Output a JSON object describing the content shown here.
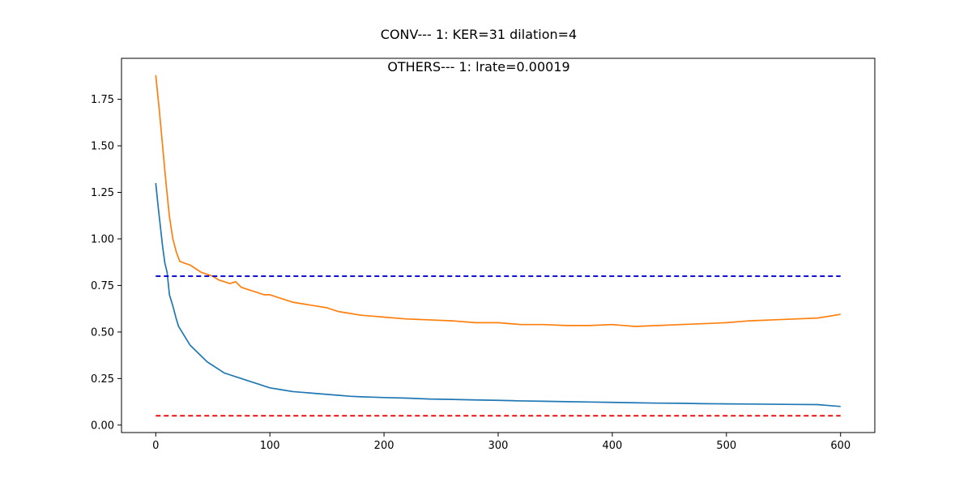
{
  "chart_data": {
    "type": "line",
    "suptitle": "CONV--- 1: KER=31   dilation=4",
    "title": "OTHERS--- 1: lrate=0.00019",
    "xlabel": "",
    "ylabel": "",
    "xlim": [
      -30,
      630
    ],
    "ylim": [
      -0.04,
      1.97
    ],
    "xticks": [
      0,
      100,
      200,
      300,
      400,
      500,
      600
    ],
    "yticks": [
      0.0,
      0.25,
      0.5,
      0.75,
      1.0,
      1.25,
      1.5,
      1.75
    ],
    "ytick_labels": [
      "0.00",
      "0.25",
      "0.50",
      "0.75",
      "1.00",
      "1.25",
      "1.50",
      "1.75"
    ],
    "grid": false,
    "legend": "none",
    "series": [
      {
        "style": "solid",
        "color": "#1f77b4",
        "x": [
          0,
          2,
          4,
          6,
          8,
          10,
          12,
          15,
          18,
          20,
          25,
          30,
          35,
          40,
          45,
          50,
          55,
          60,
          65,
          70,
          75,
          80,
          85,
          90,
          95,
          100,
          110,
          120,
          130,
          140,
          150,
          160,
          170,
          180,
          190,
          200,
          220,
          240,
          260,
          280,
          300,
          320,
          340,
          360,
          380,
          400,
          420,
          440,
          460,
          480,
          500,
          520,
          540,
          560,
          580,
          600
        ],
        "y": [
          1.3,
          1.18,
          1.07,
          0.96,
          0.87,
          0.82,
          0.7,
          0.64,
          0.57,
          0.53,
          0.48,
          0.43,
          0.4,
          0.37,
          0.34,
          0.32,
          0.3,
          0.28,
          0.27,
          0.26,
          0.25,
          0.24,
          0.23,
          0.22,
          0.21,
          0.2,
          0.19,
          0.18,
          0.175,
          0.17,
          0.165,
          0.16,
          0.155,
          0.152,
          0.15,
          0.148,
          0.145,
          0.14,
          0.138,
          0.135,
          0.133,
          0.13,
          0.128,
          0.126,
          0.124,
          0.122,
          0.12,
          0.118,
          0.117,
          0.115,
          0.114,
          0.113,
          0.112,
          0.111,
          0.11,
          0.1
        ]
      },
      {
        "style": "solid",
        "color": "#ff7f0e",
        "x": [
          0,
          3,
          6,
          9,
          12,
          15,
          18,
          21,
          25,
          30,
          35,
          40,
          45,
          50,
          55,
          60,
          65,
          70,
          75,
          80,
          85,
          90,
          95,
          100,
          110,
          120,
          130,
          140,
          150,
          160,
          170,
          180,
          190,
          200,
          220,
          240,
          260,
          280,
          300,
          320,
          340,
          360,
          380,
          400,
          420,
          440,
          460,
          480,
          500,
          520,
          540,
          560,
          580,
          600
        ],
        "y": [
          1.88,
          1.7,
          1.5,
          1.3,
          1.12,
          1.0,
          0.93,
          0.88,
          0.87,
          0.86,
          0.84,
          0.82,
          0.81,
          0.8,
          0.78,
          0.77,
          0.76,
          0.77,
          0.74,
          0.73,
          0.72,
          0.71,
          0.7,
          0.7,
          0.68,
          0.66,
          0.65,
          0.64,
          0.63,
          0.61,
          0.6,
          0.59,
          0.585,
          0.58,
          0.57,
          0.565,
          0.56,
          0.55,
          0.55,
          0.54,
          0.54,
          0.535,
          0.535,
          0.54,
          0.53,
          0.535,
          0.54,
          0.545,
          0.55,
          0.56,
          0.565,
          0.57,
          0.575,
          0.595
        ]
      },
      {
        "style": "dashed",
        "color": "#0000cc",
        "x": [
          0,
          600
        ],
        "y": [
          0.8,
          0.8
        ]
      },
      {
        "style": "dashed",
        "color": "#e60000",
        "x": [
          0,
          600
        ],
        "y": [
          0.05,
          0.05
        ]
      }
    ]
  }
}
